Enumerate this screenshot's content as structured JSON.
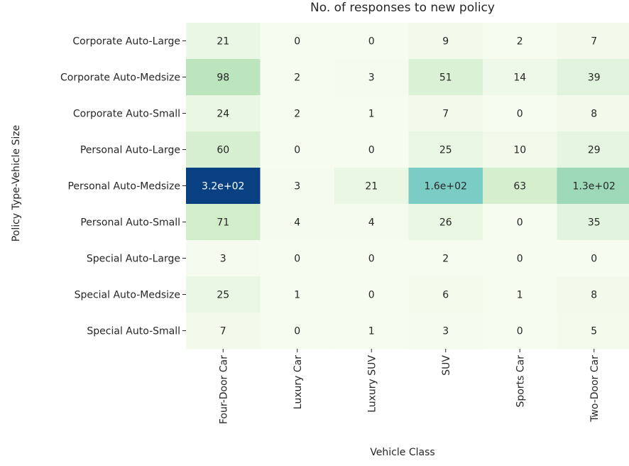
{
  "chart_data": {
    "type": "heatmap",
    "title": "No. of responses to new policy",
    "xlabel": "Vehicle Class",
    "ylabel": "Policy Type-Vehicle Size",
    "x_categories": [
      "Four-Door Car",
      "Luxury Car",
      "Luxury SUV",
      "SUV",
      "Sports Car",
      "Two-Door Car"
    ],
    "y_categories": [
      "Corporate Auto-Large",
      "Corporate Auto-Medsize",
      "Corporate Auto-Small",
      "Personal Auto-Large",
      "Personal Auto-Medsize",
      "Personal Auto-Small",
      "Special Auto-Large",
      "Special Auto-Medsize",
      "Special Auto-Small"
    ],
    "values": [
      [
        21,
        0,
        0,
        9,
        2,
        7
      ],
      [
        98,
        2,
        3,
        51,
        14,
        39
      ],
      [
        24,
        2,
        1,
        7,
        0,
        8
      ],
      [
        60,
        0,
        0,
        25,
        10,
        29
      ],
      [
        320,
        3,
        21,
        160,
        63,
        130
      ],
      [
        71,
        4,
        4,
        26,
        0,
        35
      ],
      [
        3,
        0,
        0,
        2,
        0,
        0
      ],
      [
        25,
        1,
        0,
        6,
        1,
        8
      ],
      [
        7,
        0,
        1,
        3,
        0,
        5
      ]
    ],
    "value_labels": [
      [
        "21",
        "0",
        "0",
        "9",
        "2",
        "7"
      ],
      [
        "98",
        "2",
        "3",
        "51",
        "14",
        "39"
      ],
      [
        "24",
        "2",
        "1",
        "7",
        "0",
        "8"
      ],
      [
        "60",
        "0",
        "0",
        "25",
        "10",
        "29"
      ],
      [
        "3.2e+02",
        "3",
        "21",
        "1.6e+02",
        "63",
        "1.3e+02"
      ],
      [
        "71",
        "4",
        "4",
        "26",
        "0",
        "35"
      ],
      [
        "3",
        "0",
        "0",
        "2",
        "0",
        "0"
      ],
      [
        "25",
        "1",
        "0",
        "6",
        "1",
        "8"
      ],
      [
        "7",
        "0",
        "1",
        "3",
        "0",
        "5"
      ]
    ],
    "colormap": "GnBu",
    "vmin": 0,
    "vmax": 320,
    "colorbar": false,
    "grid": false
  }
}
